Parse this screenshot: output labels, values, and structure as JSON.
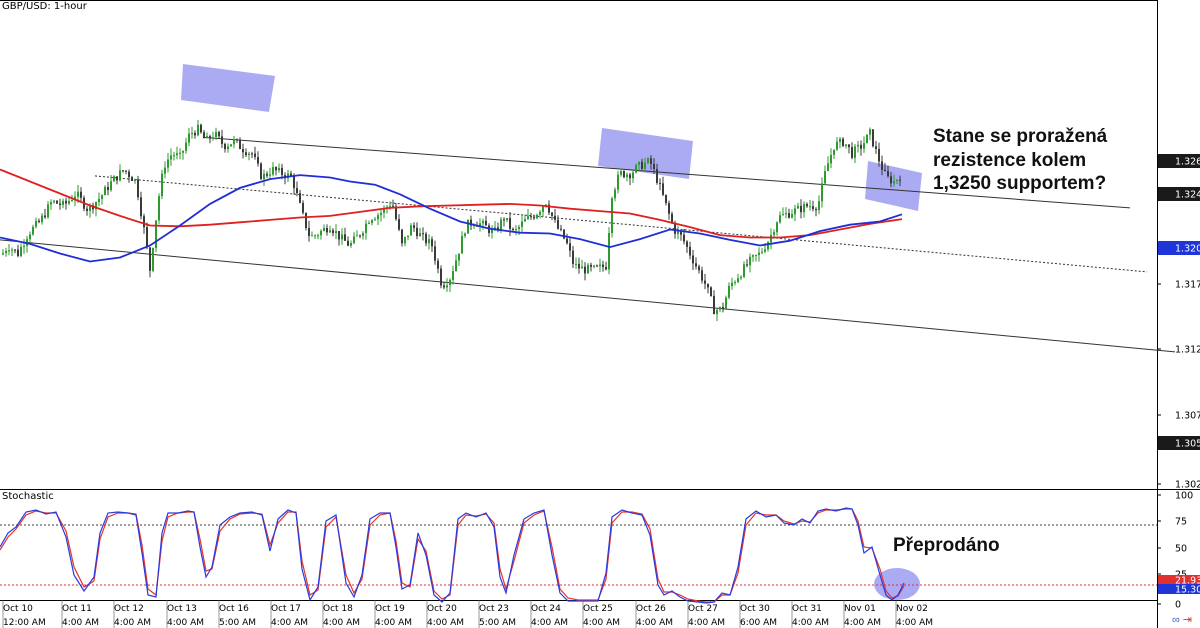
{
  "symbol": "GBP/USD: 1-hour",
  "indicator_label": "Stochastic",
  "annotations": {
    "main_lines": [
      "Stane se proražená",
      "rezistence kolem",
      "1,3250 supportem?"
    ],
    "oscillator": "Přeprodáno"
  },
  "colors": {
    "up_candle": "#2e9b2e",
    "down_candle": "#3a3a3a",
    "ma_short": "#1f2ed6",
    "ma_long": "#e0201f",
    "highlight": "#8f8ff0",
    "stoch_k": "#2a3adf",
    "stoch_d": "#e2342c",
    "ob_line": "#3a3a3a",
    "os_line": "#e0302f"
  },
  "chart_data": {
    "type": "candlestick",
    "price_axis": {
      "ticks": [
        "1.3177",
        "1.3127",
        "1.3077",
        "1.3027"
      ],
      "tags": [
        {
          "value": "1.3265",
          "style": "dark"
        },
        {
          "value": "1.3241",
          "style": "dark"
        },
        {
          "value": "1.3200",
          "style": "blue"
        },
        {
          "value": "1.3056",
          "style": "dark"
        }
      ]
    },
    "stoch_axis": {
      "ticks": [
        "100",
        "75",
        "50",
        "25",
        "0"
      ],
      "tags": [
        {
          "value": "21.93",
          "style": "red"
        },
        {
          "value": "15.30",
          "style": "blue"
        }
      ],
      "overbought": 80,
      "oversold": 20
    },
    "date_labels": [
      "Oct 10",
      "Oct 11",
      "Oct 12",
      "Oct 13",
      "Oct 16",
      "Oct 17",
      "Oct 18",
      "Oct 19",
      "Oct 20",
      "Oct 23",
      "Oct 24",
      "Oct 25",
      "Oct 26",
      "Oct 27",
      "Oct 30",
      "Oct 31",
      "Nov 01",
      "Nov 02"
    ],
    "time_labels": [
      "12:00 AM",
      "4:00 AM",
      "4:00 AM",
      "4:00 AM",
      "5:00 AM",
      "4:00 AM",
      "4:00 AM",
      "4:00 AM",
      "4:00 AM",
      "5:00 AM",
      "4:00 AM",
      "4:00 AM",
      "4:00 AM",
      "4:00 AM",
      "6:00 AM",
      "4:00 AM",
      "4:00 AM",
      "4:00 AM"
    ],
    "price_path": [
      [
        0,
        1.3145
      ],
      [
        8,
        1.316
      ],
      [
        18,
        1.315
      ],
      [
        28,
        1.3175
      ],
      [
        40,
        1.319
      ],
      [
        52,
        1.3215
      ],
      [
        64,
        1.321
      ],
      [
        76,
        1.3225
      ],
      [
        88,
        1.3205
      ],
      [
        100,
        1.322
      ],
      [
        112,
        1.324
      ],
      [
        124,
        1.3255
      ],
      [
        136,
        1.324
      ],
      [
        144,
        1.318
      ],
      [
        150,
        1.313
      ],
      [
        158,
        1.3215
      ],
      [
        164,
        1.326
      ],
      [
        172,
        1.3275
      ],
      [
        180,
        1.327
      ],
      [
        190,
        1.33
      ],
      [
        198,
        1.3305
      ],
      [
        206,
        1.329
      ],
      [
        214,
        1.33
      ],
      [
        224,
        1.3285
      ],
      [
        234,
        1.329
      ],
      [
        244,
        1.328
      ],
      [
        252,
        1.3275
      ],
      [
        262,
        1.3245
      ],
      [
        272,
        1.3255
      ],
      [
        282,
        1.325
      ],
      [
        292,
        1.3245
      ],
      [
        302,
        1.32
      ],
      [
        310,
        1.317
      ],
      [
        318,
        1.3175
      ],
      [
        330,
        1.3185
      ],
      [
        340,
        1.317
      ],
      [
        350,
        1.316
      ],
      [
        360,
        1.3175
      ],
      [
        370,
        1.3195
      ],
      [
        380,
        1.32
      ],
      [
        392,
        1.3215
      ],
      [
        402,
        1.316
      ],
      [
        412,
        1.3185
      ],
      [
        422,
        1.317
      ],
      [
        432,
        1.316
      ],
      [
        442,
        1.311
      ],
      [
        450,
        1.312
      ],
      [
        458,
        1.315
      ],
      [
        466,
        1.3185
      ],
      [
        474,
        1.319
      ],
      [
        484,
        1.3185
      ],
      [
        494,
        1.3175
      ],
      [
        504,
        1.3195
      ],
      [
        514,
        1.3175
      ],
      [
        524,
        1.319
      ],
      [
        536,
        1.32
      ],
      [
        546,
        1.3215
      ],
      [
        556,
        1.3185
      ],
      [
        566,
        1.3165
      ],
      [
        574,
        1.3135
      ],
      [
        584,
        1.313
      ],
      [
        596,
        1.313
      ],
      [
        606,
        1.3135
      ],
      [
        612,
        1.3225
      ],
      [
        620,
        1.325
      ],
      [
        630,
        1.325
      ],
      [
        640,
        1.326
      ],
      [
        650,
        1.3265
      ],
      [
        658,
        1.324
      ],
      [
        666,
        1.321
      ],
      [
        674,
        1.318
      ],
      [
        682,
        1.317
      ],
      [
        690,
        1.315
      ],
      [
        698,
        1.313
      ],
      [
        706,
        1.311
      ],
      [
        714,
        1.308
      ],
      [
        722,
        1.308
      ],
      [
        730,
        1.311
      ],
      [
        740,
        1.3125
      ],
      [
        750,
        1.314
      ],
      [
        760,
        1.315
      ],
      [
        770,
        1.317
      ],
      [
        778,
        1.3195
      ],
      [
        788,
        1.32
      ],
      [
        798,
        1.3205
      ],
      [
        808,
        1.321
      ],
      [
        818,
        1.321
      ],
      [
        826,
        1.3255
      ],
      [
        834,
        1.3285
      ],
      [
        844,
        1.329
      ],
      [
        852,
        1.3275
      ],
      [
        862,
        1.3285
      ],
      [
        870,
        1.33
      ],
      [
        878,
        1.327
      ],
      [
        886,
        1.3245
      ],
      [
        894,
        1.324
      ],
      [
        902,
        1.325
      ]
    ],
    "ma_short": [
      [
        0,
        1.317
      ],
      [
        30,
        1.3162
      ],
      [
        60,
        1.315
      ],
      [
        90,
        1.314
      ],
      [
        120,
        1.3145
      ],
      [
        150,
        1.316
      ],
      [
        180,
        1.3185
      ],
      [
        210,
        1.3212
      ],
      [
        240,
        1.3232
      ],
      [
        270,
        1.3243
      ],
      [
        300,
        1.3248
      ],
      [
        330,
        1.3245
      ],
      [
        350,
        1.324
      ],
      [
        375,
        1.3236
      ],
      [
        400,
        1.3224
      ],
      [
        430,
        1.3206
      ],
      [
        460,
        1.319
      ],
      [
        490,
        1.3181
      ],
      [
        520,
        1.3176
      ],
      [
        550,
        1.3175
      ],
      [
        580,
        1.3168
      ],
      [
        610,
        1.3158
      ],
      [
        640,
        1.3168
      ],
      [
        670,
        1.318
      ],
      [
        700,
        1.3175
      ],
      [
        730,
        1.3167
      ],
      [
        760,
        1.316
      ],
      [
        790,
        1.3166
      ],
      [
        820,
        1.3178
      ],
      [
        850,
        1.3186
      ],
      [
        880,
        1.319
      ],
      [
        902,
        1.3199
      ]
    ],
    "ma_long": [
      [
        0,
        1.3255
      ],
      [
        30,
        1.324
      ],
      [
        60,
        1.3225
      ],
      [
        90,
        1.321
      ],
      [
        120,
        1.3197
      ],
      [
        150,
        1.3185
      ],
      [
        180,
        1.3184
      ],
      [
        210,
        1.3186
      ],
      [
        240,
        1.3189
      ],
      [
        270,
        1.3192
      ],
      [
        300,
        1.3195
      ],
      [
        330,
        1.3197
      ],
      [
        360,
        1.3202
      ],
      [
        390,
        1.3207
      ],
      [
        420,
        1.3209
      ],
      [
        450,
        1.321
      ],
      [
        480,
        1.3211
      ],
      [
        510,
        1.3212
      ],
      [
        540,
        1.321
      ],
      [
        570,
        1.3206
      ],
      [
        600,
        1.3203
      ],
      [
        630,
        1.32
      ],
      [
        660,
        1.3192
      ],
      [
        690,
        1.3183
      ],
      [
        720,
        1.3173
      ],
      [
        750,
        1.317
      ],
      [
        780,
        1.317
      ],
      [
        810,
        1.3173
      ],
      [
        840,
        1.318
      ],
      [
        870,
        1.3187
      ],
      [
        902,
        1.3193
      ]
    ],
    "channel_upper": [
      [
        205,
        1.3295
      ],
      [
        1130,
        1.3207
      ]
    ],
    "channel_mid": [
      [
        95,
        1.3247
      ],
      [
        1147,
        1.3127
      ]
    ],
    "channel_lower": [
      [
        0,
        1.3167
      ],
      [
        1175,
        1.3027
      ]
    ],
    "stoch_k": [
      [
        0,
        58
      ],
      [
        8,
        72
      ],
      [
        16,
        78
      ],
      [
        26,
        93
      ],
      [
        36,
        95
      ],
      [
        46,
        91
      ],
      [
        56,
        93
      ],
      [
        66,
        68
      ],
      [
        74,
        30
      ],
      [
        84,
        14
      ],
      [
        94,
        28
      ],
      [
        100,
        72
      ],
      [
        108,
        92
      ],
      [
        118,
        93
      ],
      [
        128,
        92
      ],
      [
        136,
        90
      ],
      [
        142,
        52
      ],
      [
        148,
        10
      ],
      [
        156,
        8
      ],
      [
        162,
        72
      ],
      [
        168,
        92
      ],
      [
        178,
        92
      ],
      [
        188,
        94
      ],
      [
        194,
        93
      ],
      [
        200,
        58
      ],
      [
        206,
        28
      ],
      [
        212,
        38
      ],
      [
        220,
        80
      ],
      [
        230,
        88
      ],
      [
        240,
        92
      ],
      [
        252,
        93
      ],
      [
        262,
        90
      ],
      [
        270,
        54
      ],
      [
        278,
        86
      ],
      [
        288,
        95
      ],
      [
        296,
        92
      ],
      [
        302,
        36
      ],
      [
        310,
        5
      ],
      [
        318,
        18
      ],
      [
        326,
        84
      ],
      [
        336,
        90
      ],
      [
        346,
        22
      ],
      [
        354,
        8
      ],
      [
        362,
        30
      ],
      [
        370,
        86
      ],
      [
        380,
        92
      ],
      [
        390,
        92
      ],
      [
        396,
        58
      ],
      [
        402,
        16
      ],
      [
        410,
        20
      ],
      [
        418,
        72
      ],
      [
        426,
        50
      ],
      [
        434,
        10
      ],
      [
        442,
        3
      ],
      [
        450,
        12
      ],
      [
        458,
        86
      ],
      [
        466,
        92
      ],
      [
        476,
        88
      ],
      [
        486,
        92
      ],
      [
        494,
        78
      ],
      [
        500,
        28
      ],
      [
        506,
        12
      ],
      [
        514,
        50
      ],
      [
        524,
        86
      ],
      [
        534,
        92
      ],
      [
        544,
        95
      ],
      [
        552,
        50
      ],
      [
        560,
        12
      ],
      [
        568,
        4
      ],
      [
        578,
        4
      ],
      [
        590,
        4
      ],
      [
        598,
        4
      ],
      [
        606,
        32
      ],
      [
        612,
        88
      ],
      [
        622,
        95
      ],
      [
        632,
        92
      ],
      [
        642,
        90
      ],
      [
        650,
        70
      ],
      [
        658,
        20
      ],
      [
        664,
        10
      ],
      [
        672,
        14
      ],
      [
        680,
        8
      ],
      [
        688,
        4
      ],
      [
        698,
        3
      ],
      [
        706,
        2
      ],
      [
        714,
        3
      ],
      [
        722,
        12
      ],
      [
        730,
        10
      ],
      [
        738,
        38
      ],
      [
        746,
        86
      ],
      [
        756,
        94
      ],
      [
        766,
        88
      ],
      [
        776,
        90
      ],
      [
        784,
        82
      ],
      [
        794,
        80
      ],
      [
        802,
        86
      ],
      [
        810,
        82
      ],
      [
        818,
        94
      ],
      [
        826,
        96
      ],
      [
        836,
        94
      ],
      [
        846,
        97
      ],
      [
        852,
        96
      ],
      [
        858,
        80
      ],
      [
        864,
        52
      ],
      [
        872,
        58
      ],
      [
        880,
        30
      ],
      [
        886,
        10
      ],
      [
        892,
        5
      ],
      [
        898,
        10
      ],
      [
        904,
        22
      ]
    ],
    "stoch_d": [
      [
        0,
        55
      ],
      [
        8,
        68
      ],
      [
        16,
        76
      ],
      [
        26,
        90
      ],
      [
        36,
        94
      ],
      [
        46,
        92
      ],
      [
        56,
        92
      ],
      [
        66,
        74
      ],
      [
        74,
        38
      ],
      [
        84,
        18
      ],
      [
        94,
        24
      ],
      [
        100,
        66
      ],
      [
        108,
        88
      ],
      [
        118,
        92
      ],
      [
        128,
        92
      ],
      [
        136,
        91
      ],
      [
        142,
        60
      ],
      [
        148,
        16
      ],
      [
        156,
        10
      ],
      [
        162,
        64
      ],
      [
        168,
        88
      ],
      [
        178,
        92
      ],
      [
        188,
        93
      ],
      [
        194,
        93
      ],
      [
        200,
        66
      ],
      [
        206,
        34
      ],
      [
        212,
        36
      ],
      [
        220,
        74
      ],
      [
        230,
        86
      ],
      [
        240,
        91
      ],
      [
        252,
        92
      ],
      [
        262,
        91
      ],
      [
        270,
        60
      ],
      [
        278,
        82
      ],
      [
        288,
        93
      ],
      [
        296,
        93
      ],
      [
        302,
        44
      ],
      [
        310,
        10
      ],
      [
        318,
        15
      ],
      [
        326,
        78
      ],
      [
        336,
        88
      ],
      [
        346,
        30
      ],
      [
        354,
        12
      ],
      [
        362,
        26
      ],
      [
        370,
        80
      ],
      [
        380,
        90
      ],
      [
        390,
        92
      ],
      [
        396,
        64
      ],
      [
        402,
        22
      ],
      [
        410,
        18
      ],
      [
        418,
        66
      ],
      [
        426,
        54
      ],
      [
        434,
        14
      ],
      [
        442,
        6
      ],
      [
        450,
        10
      ],
      [
        458,
        80
      ],
      [
        466,
        90
      ],
      [
        476,
        89
      ],
      [
        486,
        91
      ],
      [
        494,
        82
      ],
      [
        500,
        36
      ],
      [
        506,
        16
      ],
      [
        514,
        44
      ],
      [
        524,
        82
      ],
      [
        534,
        90
      ],
      [
        544,
        94
      ],
      [
        552,
        58
      ],
      [
        560,
        16
      ],
      [
        568,
        7
      ],
      [
        578,
        5
      ],
      [
        590,
        5
      ],
      [
        598,
        5
      ],
      [
        606,
        26
      ],
      [
        612,
        82
      ],
      [
        622,
        93
      ],
      [
        632,
        93
      ],
      [
        642,
        91
      ],
      [
        650,
        76
      ],
      [
        658,
        26
      ],
      [
        664,
        13
      ],
      [
        672,
        13
      ],
      [
        680,
        10
      ],
      [
        688,
        6
      ],
      [
        698,
        4
      ],
      [
        706,
        3
      ],
      [
        714,
        3
      ],
      [
        722,
        10
      ],
      [
        730,
        10
      ],
      [
        738,
        32
      ],
      [
        746,
        80
      ],
      [
        756,
        92
      ],
      [
        766,
        90
      ],
      [
        776,
        90
      ],
      [
        784,
        84
      ],
      [
        794,
        81
      ],
      [
        802,
        84
      ],
      [
        810,
        83
      ],
      [
        818,
        92
      ],
      [
        826,
        95
      ],
      [
        836,
        95
      ],
      [
        846,
        96
      ],
      [
        852,
        96
      ],
      [
        858,
        84
      ],
      [
        864,
        58
      ],
      [
        872,
        57
      ],
      [
        880,
        36
      ],
      [
        886,
        14
      ],
      [
        892,
        7
      ],
      [
        898,
        9
      ],
      [
        904,
        19
      ]
    ]
  }
}
